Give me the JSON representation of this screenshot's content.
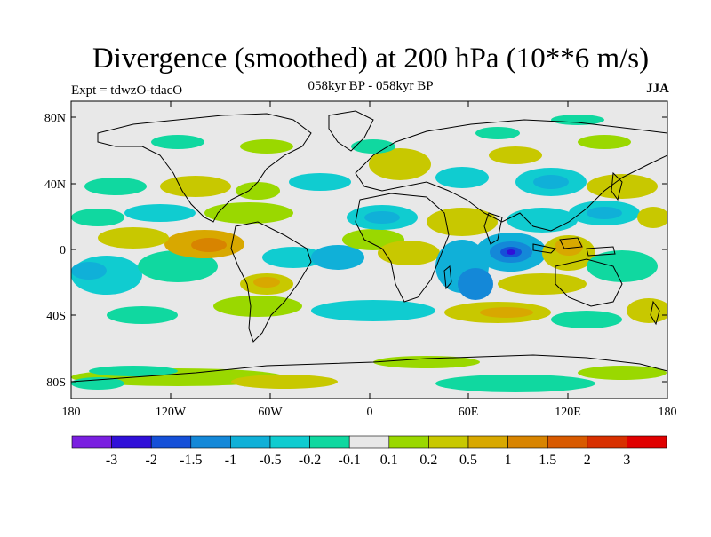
{
  "figure": {
    "title": "Divergence (smoothed) at 200 hPa (10**6 m/s)",
    "left_label": "Expt = tdwzO-tdacO",
    "center_label": "058kyr BP - 058kyr BP",
    "right_label": "JJA"
  },
  "map": {
    "lat_ticks": [
      "80N",
      "40N",
      "0",
      "40S",
      "80S"
    ],
    "lon_ticks": [
      "180",
      "120W",
      "60W",
      "0",
      "60E",
      "120E",
      "180"
    ]
  },
  "colorbar": {
    "labels": [
      "-3",
      "-2",
      "-1.5",
      "-1",
      "-0.5",
      "-0.2",
      "-0.1",
      "0.1",
      "0.2",
      "0.5",
      "1",
      "1.5",
      "2",
      "3"
    ],
    "colors": [
      "#7a1fe0",
      "#3010d8",
      "#1550d8",
      "#1488d8",
      "#10b0d8",
      "#10ccd0",
      "#10d8a0",
      "#e8e8e8",
      "#9ad800",
      "#c8c800",
      "#d8a800",
      "#d88400",
      "#d85a00",
      "#d83000",
      "#e00000"
    ]
  },
  "chart_data": {
    "type": "heatmap",
    "title": "Divergence (smoothed) at 200 hPa (10**6 m/s)",
    "xlabel": "",
    "ylabel": "",
    "x_ticks": [
      "180",
      "120W",
      "60W",
      "0",
      "60E",
      "120E",
      "180"
    ],
    "y_ticks": [
      "80N",
      "40N",
      "0",
      "40S",
      "80S"
    ],
    "levels": [
      -3,
      -2,
      -1.5,
      -1,
      -0.5,
      -0.2,
      -0.1,
      0.1,
      0.2,
      0.5,
      1,
      1.5,
      2,
      3
    ]
  }
}
